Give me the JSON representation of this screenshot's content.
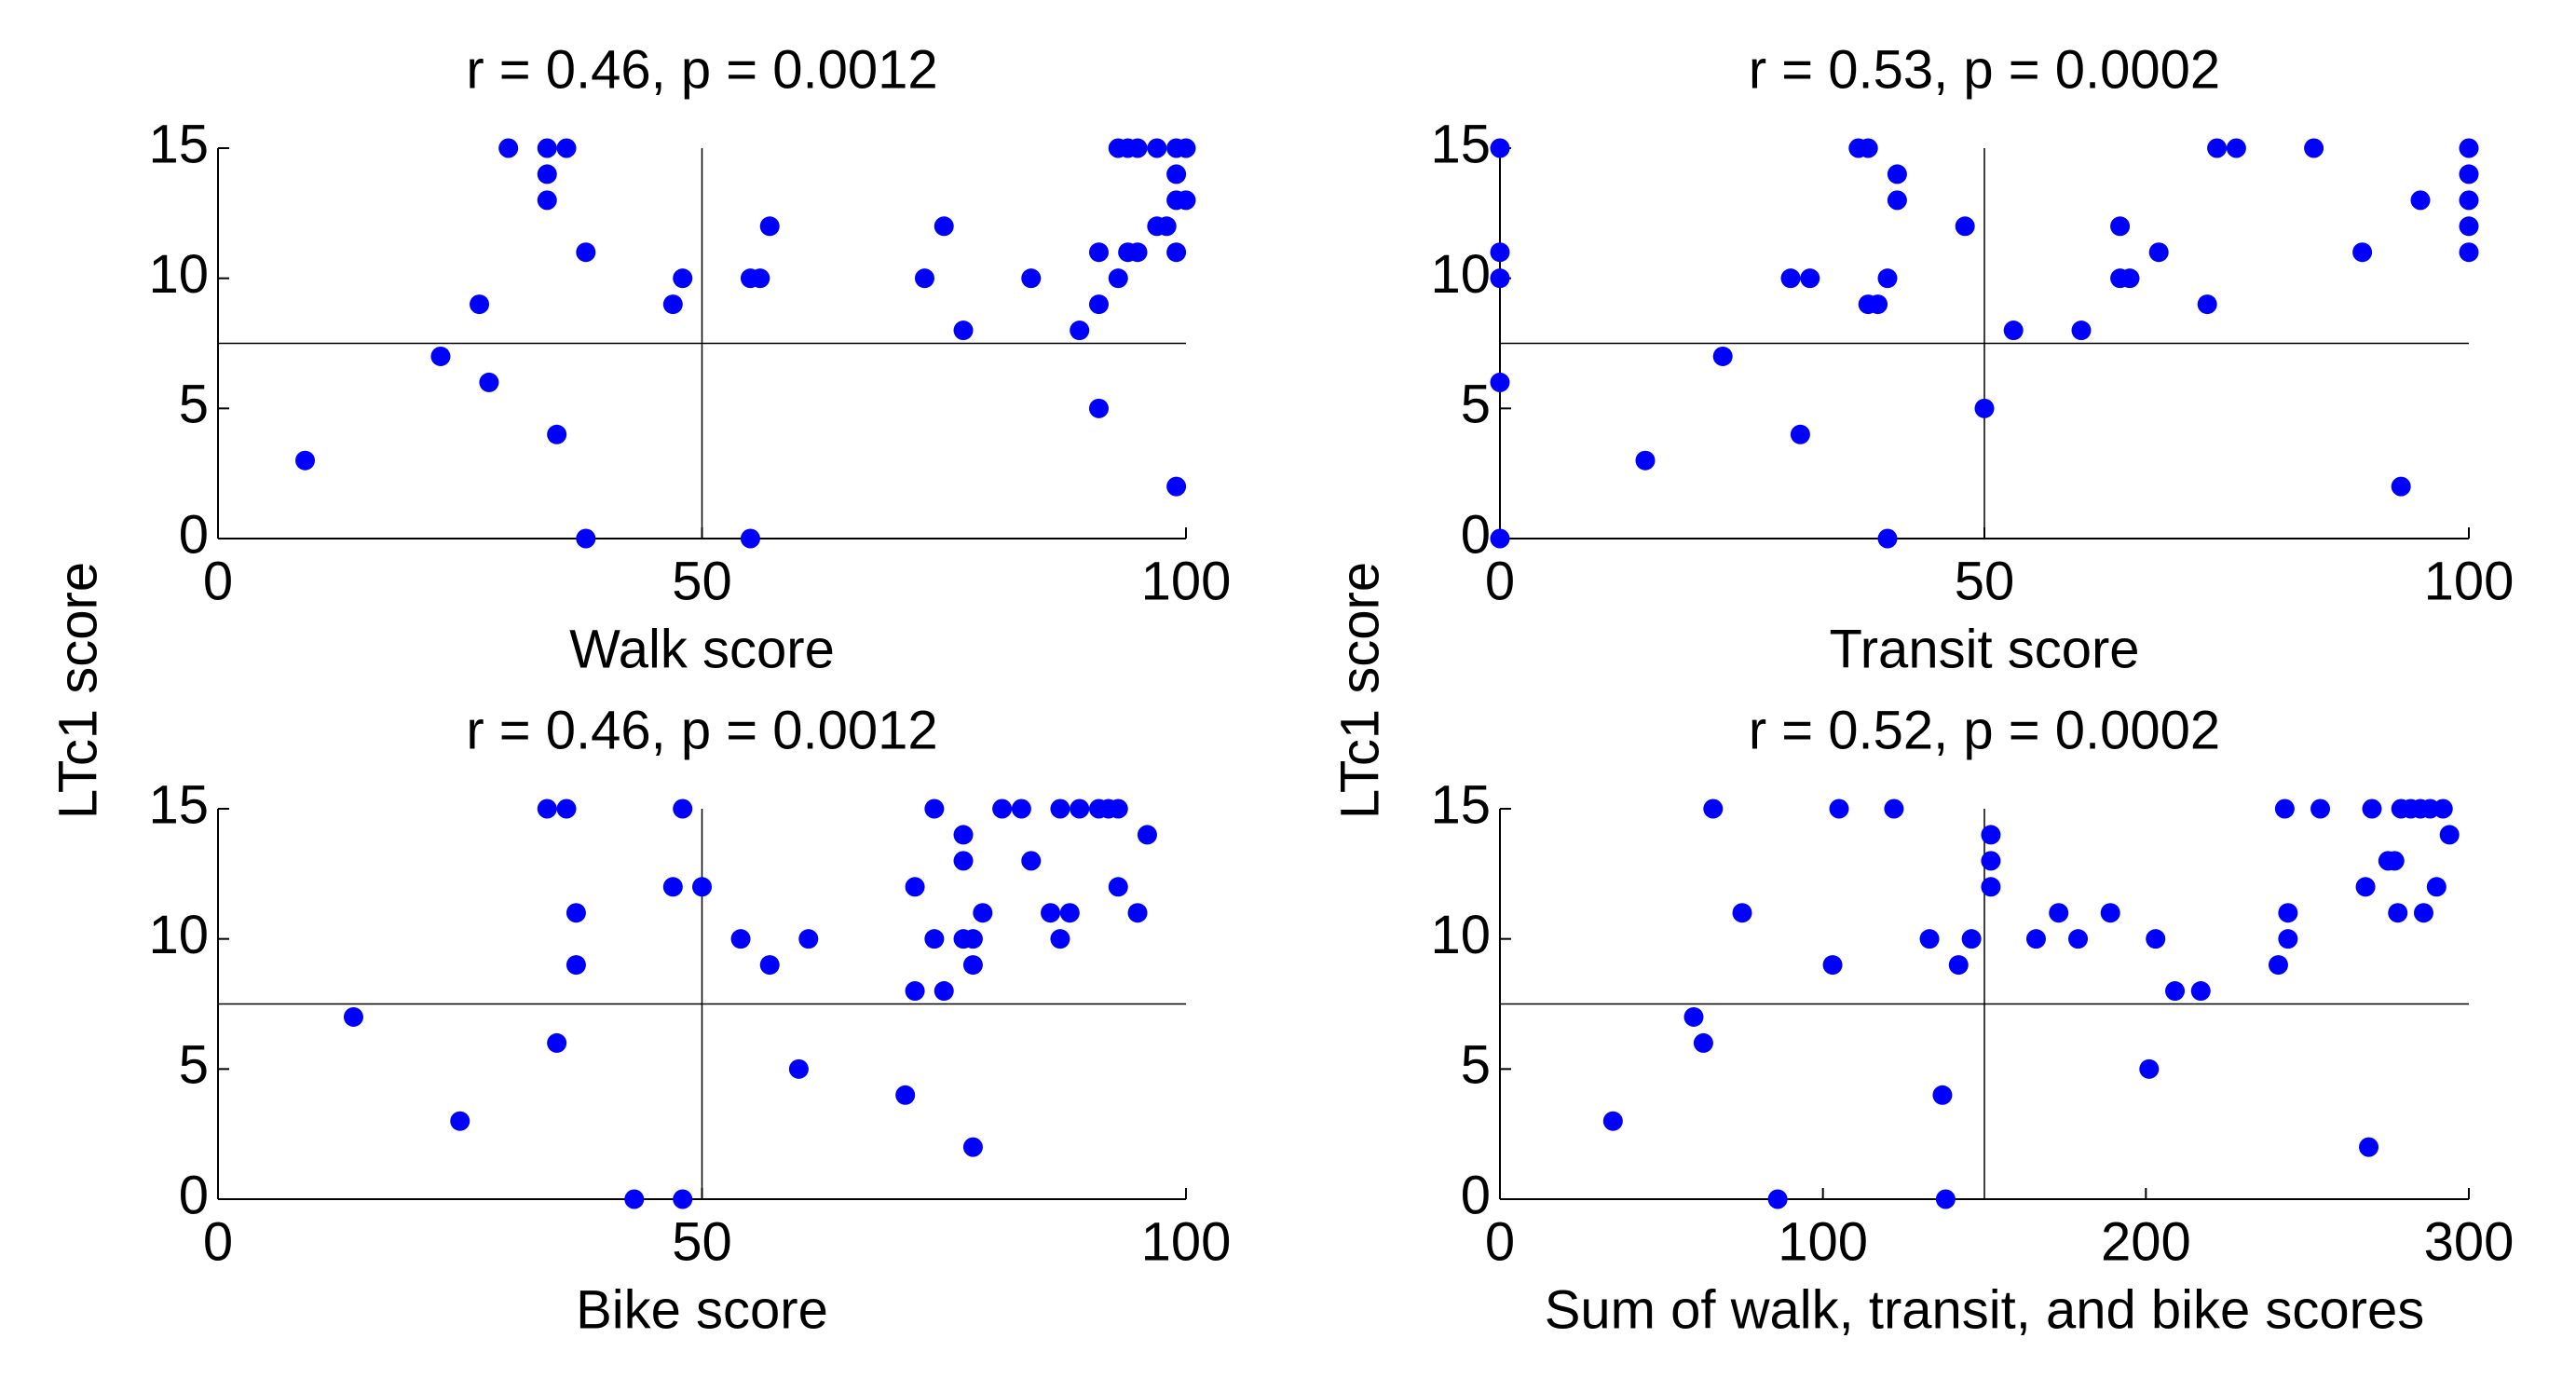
{
  "chart_data": [
    {
      "type": "scatter",
      "title": "r = 0.46, p = 0.0012",
      "xlabel": "Walk score",
      "ylabel": "LTc1 score",
      "color": "#0000ff",
      "xlim": [
        0,
        100
      ],
      "ylim": [
        0,
        15
      ],
      "xticks": [
        0,
        50,
        100
      ],
      "yticks": [
        0,
        5,
        10,
        15
      ],
      "vline": 50,
      "hline": 7.5,
      "x": [
        9,
        30,
        34,
        36,
        34,
        34,
        38,
        27,
        23,
        28,
        35,
        38,
        47,
        48,
        55,
        55,
        56,
        57,
        73,
        75,
        77,
        84,
        89,
        91,
        91,
        91,
        93,
        93,
        94,
        95,
        97,
        99,
        100,
        94,
        95,
        97,
        98,
        99,
        99,
        100,
        99,
        99
      ],
      "values": [
        3,
        15,
        15,
        15,
        14,
        13,
        11,
        9,
        7,
        6,
        4,
        0,
        9,
        10,
        0,
        10,
        10,
        12,
        10,
        12,
        8,
        10,
        8,
        9,
        11,
        5,
        10,
        15,
        15,
        15,
        15,
        15,
        15,
        11,
        11,
        12,
        12,
        14,
        13,
        13,
        11,
        2
      ]
    },
    {
      "type": "scatter",
      "title": "r = 0.53, p = 0.0002",
      "xlabel": "Transit score",
      "ylabel": "LTc1 score",
      "color": "#0000ff",
      "xlim": [
        0,
        100
      ],
      "ylim": [
        0,
        15
      ],
      "xticks": [
        0,
        50,
        100
      ],
      "yticks": [
        0,
        5,
        10,
        15
      ],
      "vline": 50,
      "hline": 7.5,
      "x": [
        0,
        0,
        0,
        0,
        0,
        15,
        23,
        30,
        32,
        31,
        37,
        38,
        38,
        39,
        40,
        40,
        41,
        41,
        48,
        50,
        53,
        60,
        64,
        64,
        65,
        68,
        73,
        74,
        76,
        84,
        89,
        93,
        95,
        100,
        100,
        100,
        100,
        100
      ],
      "values": [
        15,
        11,
        10,
        6,
        0,
        3,
        7,
        10,
        10,
        4,
        15,
        15,
        9,
        9,
        10,
        0,
        14,
        13,
        12,
        5,
        8,
        8,
        12,
        10,
        10,
        11,
        9,
        15,
        15,
        15,
        11,
        2,
        13,
        15,
        14,
        13,
        12,
        11
      ]
    },
    {
      "type": "scatter",
      "title": "r = 0.46, p = 0.0012",
      "xlabel": "Bike score",
      "color": "#0000ff",
      "xlim": [
        0,
        100
      ],
      "ylim": [
        0,
        15
      ],
      "xticks": [
        0,
        50,
        100
      ],
      "yticks": [
        0,
        5,
        10,
        15
      ],
      "vline": 50,
      "hline": 7.5,
      "x": [
        14,
        25,
        34,
        36,
        37,
        37,
        35,
        43,
        48,
        47,
        48,
        50,
        54,
        57,
        61,
        60,
        71,
        72,
        72,
        74,
        74,
        75,
        77,
        77,
        77,
        78,
        78,
        79,
        78,
        81,
        83,
        84,
        86,
        88,
        87,
        87,
        89,
        91,
        92,
        93,
        93,
        95,
        96
      ],
      "values": [
        7,
        3,
        15,
        15,
        11,
        9,
        6,
        0,
        0,
        12,
        15,
        12,
        10,
        9,
        10,
        5,
        4,
        12,
        8,
        15,
        10,
        8,
        14,
        13,
        10,
        10,
        9,
        11,
        2,
        15,
        15,
        13,
        11,
        11,
        10,
        15,
        15,
        15,
        15,
        15,
        12,
        11,
        14
      ]
    },
    {
      "type": "scatter",
      "title": "r = 0.52, p = 0.0002",
      "xlabel": "Sum of walk, transit, and bike scores",
      "color": "#0000ff",
      "xlim": [
        0,
        300
      ],
      "ylim": [
        0,
        15
      ],
      "xticks": [
        0,
        100,
        200,
        300
      ],
      "yticks": [
        0,
        5,
        10,
        15
      ],
      "vline": 150,
      "hline": 7.5,
      "x": [
        35,
        60,
        63,
        66,
        75,
        86,
        103,
        105,
        122,
        133,
        137,
        138,
        142,
        146,
        152,
        152,
        152,
        166,
        173,
        179,
        189,
        203,
        201,
        209,
        217,
        241,
        244,
        244,
        243,
        254,
        268,
        269,
        270,
        275,
        277,
        278,
        286,
        279,
        282,
        285,
        288,
        292,
        290,
        294
      ],
      "values": [
        3,
        7,
        6,
        15,
        11,
        0,
        9,
        15,
        15,
        10,
        4,
        0,
        9,
        10,
        14,
        13,
        12,
        10,
        11,
        10,
        11,
        10,
        5,
        8,
        8,
        9,
        10,
        11,
        15,
        15,
        12,
        2,
        15,
        13,
        13,
        11,
        11,
        15,
        15,
        15,
        15,
        15,
        12,
        14
      ]
    }
  ]
}
